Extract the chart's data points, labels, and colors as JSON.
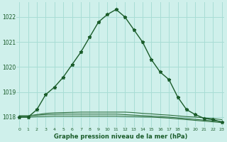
{
  "title": "Graphe pression niveau de la mer (hPa)",
  "bg_color": "#cff0eb",
  "grid_color": "#a8ddd5",
  "line_color_main": "#1a5c2a",
  "line_color_flat": "#2d6e3e",
  "x_ticks": [
    0,
    1,
    2,
    3,
    4,
    5,
    6,
    7,
    8,
    9,
    10,
    11,
    12,
    13,
    14,
    15,
    16,
    17,
    18,
    19,
    20,
    21,
    22,
    23
  ],
  "y_ticks": [
    1018,
    1019,
    1020,
    1021,
    1022
  ],
  "xlim": [
    -0.3,
    23.3
  ],
  "ylim": [
    1017.6,
    1022.6
  ],
  "series_main": [
    1018.0,
    1018.0,
    1018.3,
    1018.9,
    1019.2,
    1019.6,
    1020.1,
    1020.6,
    1021.2,
    1021.8,
    1022.1,
    1022.3,
    1022.0,
    1021.5,
    1021.0,
    1020.3,
    1019.8,
    1019.5,
    1018.8,
    1018.3,
    1018.1,
    1017.95,
    1017.9,
    1017.8
  ],
  "series_line2": [
    1018.05,
    1018.05,
    1018.1,
    1018.15,
    1018.17,
    1018.18,
    1018.19,
    1018.2,
    1018.2,
    1018.2,
    1018.2,
    1018.2,
    1018.2,
    1018.18,
    1018.15,
    1018.13,
    1018.1,
    1018.08,
    1018.05,
    1018.02,
    1018.0,
    1017.97,
    1017.94,
    1017.9
  ],
  "series_line3": [
    1018.05,
    1018.05,
    1018.08,
    1018.1,
    1018.11,
    1018.12,
    1018.12,
    1018.12,
    1018.12,
    1018.12,
    1018.12,
    1018.12,
    1018.1,
    1018.08,
    1018.06,
    1018.04,
    1018.02,
    1018.0,
    1017.97,
    1017.94,
    1017.91,
    1017.88,
    1017.85,
    1017.82
  ],
  "series_line4": [
    1018.0,
    1018.0,
    1018.02,
    1018.03,
    1018.04,
    1018.04,
    1018.04,
    1018.04,
    1018.04,
    1018.04,
    1018.04,
    1018.04,
    1018.03,
    1018.02,
    1018.01,
    1018.0,
    1017.98,
    1017.96,
    1017.93,
    1017.9,
    1017.87,
    1017.84,
    1017.81,
    1017.78
  ]
}
